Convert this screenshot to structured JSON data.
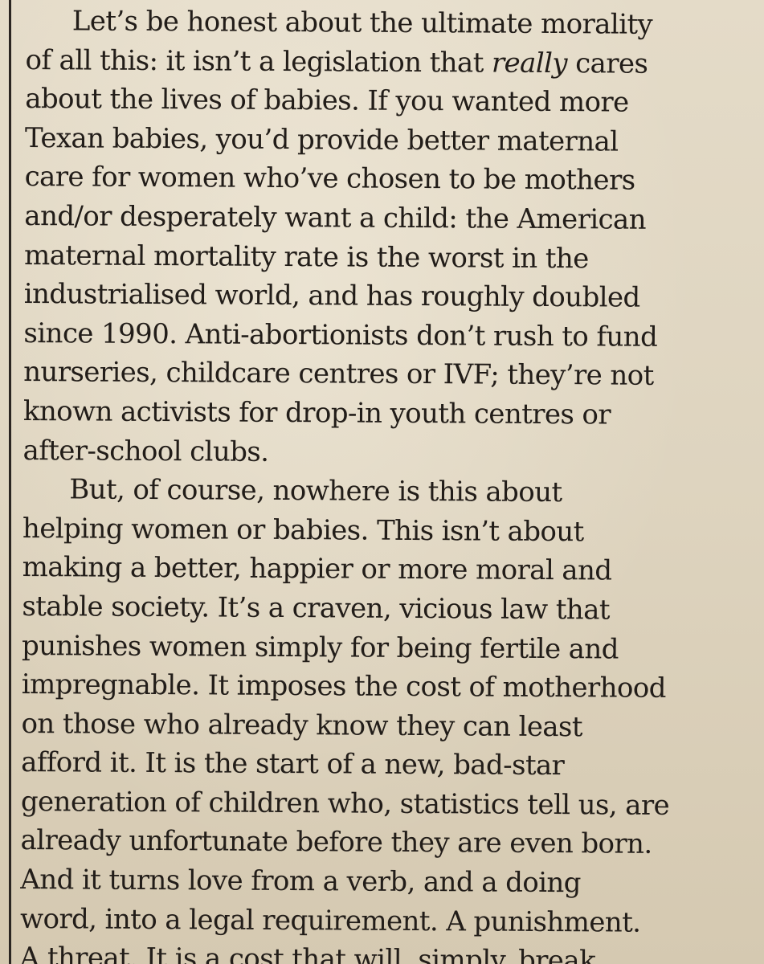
{
  "paragraphs": [
    {
      "lines": [
        "Let’s be honest about the ultimate morality",
        "of all this: it isn’t a legislation that ",
        "about the lives of babies. If you wanted more",
        "Texan babies, you’d provide better maternal",
        "care for women who’ve chosen to be mothers",
        "and/or desperately want a child: the American",
        "maternal mortality rate is the worst in the",
        "industrialised world, and has roughly doubled",
        "since 1990. Anti-abortionists don’t rush to fund",
        "nurseries, childcare centres or IVF; they’re not",
        "known activists for drop-in youth centres or",
        "after-school clubs."
      ],
      "italic_word": "really",
      "after_italic": " cares"
    },
    {
      "lines": [
        "But, of course, nowhere is this about",
        "helping women or babies. This isn’t about",
        "making a better, happier or more moral and",
        "stable society. It’s a craven, vicious law that",
        "punishes women simply for being fertile and",
        "impregnable. It imposes the cost of motherhood",
        "on those who already know they can least",
        "afford it. It is the start of a new, bad-star",
        "generation of children who, statistics tell us, are",
        "already unfortunate before they are even born.",
        "And it turns love from a verb, and a doing",
        "word, into a legal requirement. A punishment.",
        "A threat. It is a cost that will, simply, break"
      ]
    }
  ]
}
